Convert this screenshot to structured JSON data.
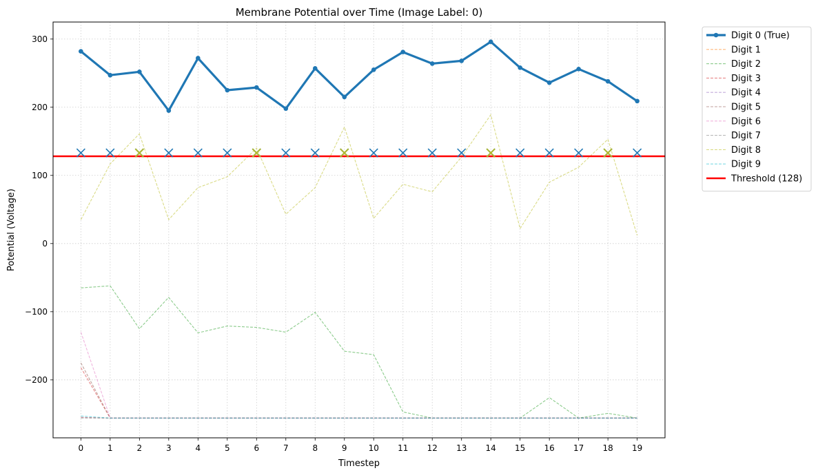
{
  "chart_data": {
    "type": "line",
    "title": "Membrane Potential over Time (Image Label: 0)",
    "xlabel": "Timestep",
    "ylabel": "Potential (Voltage)",
    "x": [
      0,
      1,
      2,
      3,
      4,
      5,
      6,
      7,
      8,
      9,
      10,
      11,
      12,
      13,
      14,
      15,
      16,
      17,
      18,
      19
    ],
    "xlim": [
      -0.95,
      19.95
    ],
    "ylim": [
      -285,
      325
    ],
    "yticks": [
      -200,
      -100,
      0,
      100,
      200,
      300
    ],
    "grid": true,
    "legend_position": "outside-top-right",
    "threshold": {
      "name": "Threshold (128)",
      "value": 128,
      "color": "#ff0000"
    },
    "spike_marker_y": 133,
    "series": [
      {
        "name": "Digit 0 (True)",
        "color": "#1f77b4",
        "style": "solid-bold-marker",
        "values": [
          282,
          247,
          252,
          195,
          272,
          225,
          229,
          198,
          257,
          215,
          255,
          281,
          264,
          268,
          296,
          258,
          236,
          256,
          238,
          209
        ],
        "spikes": [
          0,
          1,
          2,
          3,
          4,
          5,
          6,
          7,
          8,
          9,
          10,
          11,
          12,
          13,
          14,
          15,
          16,
          17,
          18,
          19
        ]
      },
      {
        "name": "Digit 1",
        "color": "#ff7f0e",
        "style": "dashed",
        "values": [
          -255,
          -256,
          -256,
          -256,
          -256,
          -256,
          -256,
          -256,
          -256,
          -256,
          -256,
          -256,
          -256,
          -256,
          -256,
          -256,
          -256,
          -256,
          -256,
          -256
        ]
      },
      {
        "name": "Digit 2",
        "color": "#2ca02c",
        "style": "dashed",
        "values": [
          -65,
          -62,
          -125,
          -79,
          -131,
          -121,
          -123,
          -130,
          -101,
          -158,
          -163,
          -247,
          -256,
          -256,
          -256,
          -256,
          -226,
          -256,
          -249,
          -256
        ]
      },
      {
        "name": "Digit 3",
        "color": "#d62728",
        "style": "dashed",
        "values": [
          -182,
          -256,
          -256,
          -256,
          -256,
          -256,
          -256,
          -256,
          -256,
          -256,
          -256,
          -256,
          -256,
          -256,
          -256,
          -256,
          -256,
          -256,
          -256,
          -256
        ]
      },
      {
        "name": "Digit 4",
        "color": "#9467bd",
        "style": "dashed",
        "values": [
          -255,
          -256,
          -256,
          -256,
          -256,
          -256,
          -256,
          -256,
          -256,
          -256,
          -256,
          -256,
          -256,
          -256,
          -256,
          -256,
          -256,
          -256,
          -256,
          -256
        ]
      },
      {
        "name": "Digit 5",
        "color": "#8c564b",
        "style": "dashed",
        "values": [
          -175,
          -256,
          -256,
          -256,
          -256,
          -256,
          -256,
          -256,
          -256,
          -256,
          -256,
          -256,
          -256,
          -256,
          -256,
          -256,
          -256,
          -256,
          -256,
          -256
        ]
      },
      {
        "name": "Digit 6",
        "color": "#e377c2",
        "style": "dashed",
        "values": [
          -130,
          -256,
          -256,
          -256,
          -256,
          -256,
          -256,
          -256,
          -256,
          -256,
          -256,
          -256,
          -256,
          -256,
          -256,
          -256,
          -256,
          -256,
          -256,
          -256
        ]
      },
      {
        "name": "Digit 7",
        "color": "#7f7f7f",
        "style": "dashed",
        "values": [
          -256,
          -256,
          -256,
          -256,
          -256,
          -256,
          -256,
          -256,
          -256,
          -256,
          -256,
          -256,
          -256,
          -256,
          -256,
          -256,
          -256,
          -256,
          -256,
          -256
        ]
      },
      {
        "name": "Digit 8",
        "color": "#bcbd22",
        "style": "dashed",
        "values": [
          35,
          117,
          161,
          35,
          82,
          98,
          140,
          43,
          82,
          171,
          37,
          87,
          76,
          127,
          189,
          22,
          90,
          112,
          153,
          12
        ],
        "spikes": [
          2,
          6,
          9,
          14,
          18
        ]
      },
      {
        "name": "Digit 9",
        "color": "#17becf",
        "style": "dashed",
        "values": [
          -253,
          -256,
          -256,
          -256,
          -256,
          -256,
          -256,
          -256,
          -256,
          -256,
          -256,
          -256,
          -256,
          -256,
          -256,
          -256,
          -256,
          -256,
          -256,
          -256
        ]
      }
    ]
  }
}
